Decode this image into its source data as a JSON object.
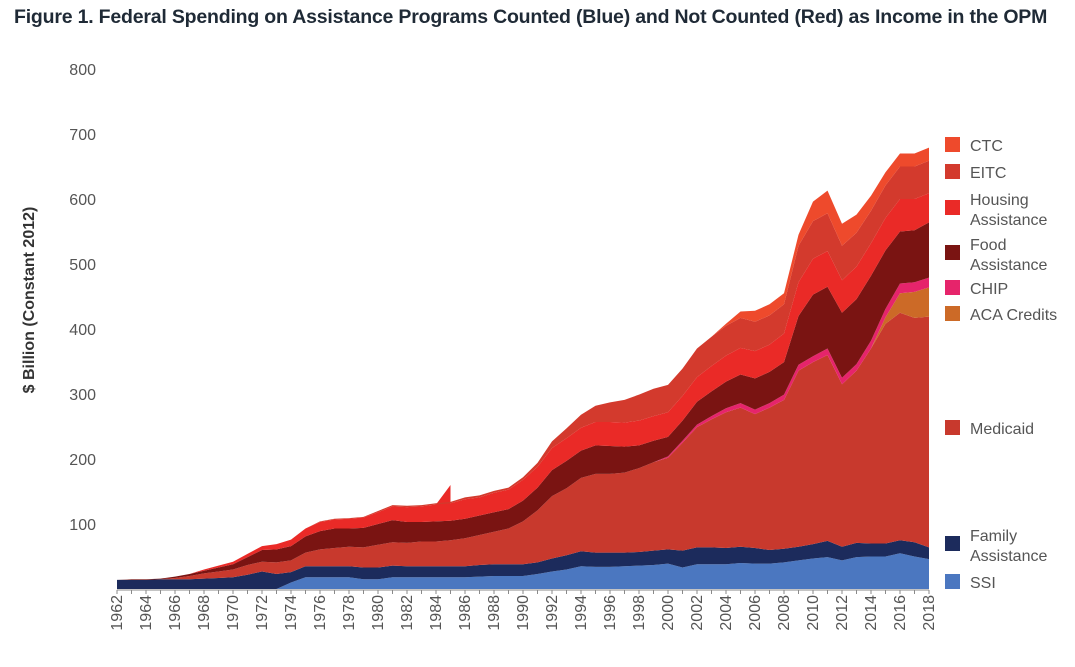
{
  "chart_data": {
    "type": "area",
    "title": "Figure 1. Federal Spending on Assistance Programs Counted (Blue) and Not Counted (Red) as Income in the OPM",
    "ylabel": "$ Billion (Constant 2012)",
    "xlabel": "",
    "ylim": [
      0,
      800
    ],
    "y_ticks": [
      100,
      200,
      300,
      400,
      500,
      600,
      700,
      800
    ],
    "x_ticks": [
      1962,
      1964,
      1966,
      1968,
      1970,
      1972,
      1974,
      1976,
      1978,
      1980,
      1982,
      1984,
      1986,
      1988,
      1990,
      1992,
      1994,
      1996,
      1998,
      2000,
      2002,
      2004,
      2006,
      2008,
      2010,
      2012,
      2014,
      2016,
      2018
    ],
    "stacked": true,
    "legend_position": "right",
    "x": [
      1962,
      1963,
      1964,
      1965,
      1966,
      1967,
      1968,
      1969,
      1970,
      1971,
      1972,
      1973,
      1974,
      1975,
      1976,
      1977,
      1978,
      1979,
      1980,
      1981,
      1982,
      1983,
      1984,
      1985,
      1986,
      1987,
      1988,
      1989,
      1990,
      1991,
      1992,
      1993,
      1994,
      1995,
      1996,
      1997,
      1998,
      1999,
      2000,
      2001,
      2002,
      2003,
      2004,
      2005,
      2006,
      2007,
      2008,
      2009,
      2010,
      2011,
      2012,
      2013,
      2014,
      2015,
      2016,
      2017,
      2018
    ],
    "series": [
      {
        "name": "SSI",
        "color": "#4b77c0",
        "values": [
          0,
          0,
          0,
          0,
          0,
          0,
          0,
          0,
          0,
          0,
          0,
          0,
          10,
          18,
          18,
          18,
          18,
          15,
          15,
          18,
          18,
          18,
          18,
          18,
          18,
          19,
          20,
          20,
          20,
          23,
          27,
          30,
          35,
          34,
          34,
          35,
          36,
          37,
          39,
          33,
          38,
          38,
          38,
          40,
          39,
          39,
          41,
          44,
          47,
          49,
          44,
          49,
          50,
          50,
          55,
          50,
          46
        ]
      },
      {
        "name": "Family Assistance",
        "color": "#1c2b5c",
        "values": [
          14,
          14,
          14,
          15,
          15,
          15,
          16,
          17,
          18,
          22,
          27,
          23,
          16,
          17,
          17,
          17,
          17,
          18,
          18,
          18,
          17,
          17,
          17,
          17,
          17,
          18,
          18,
          18,
          18,
          18,
          20,
          22,
          23,
          22,
          22,
          21,
          21,
          22,
          22,
          26,
          26,
          26,
          25,
          25,
          24,
          21,
          21,
          21,
          22,
          25,
          21,
          22,
          20,
          20,
          20,
          22,
          18
        ]
      },
      {
        "name": "Medicaid",
        "color": "#c8392d",
        "values": [
          0,
          0,
          0,
          0,
          2,
          5,
          8,
          10,
          12,
          15,
          15,
          18,
          18,
          21,
          26,
          28,
          30,
          31,
          35,
          36,
          36,
          38,
          38,
          40,
          43,
          46,
          50,
          55,
          66,
          80,
          96,
          103,
          113,
          121,
          121,
          123,
          129,
          136,
          141,
          166,
          185,
          197,
          209,
          214,
          206,
          219,
          229,
          271,
          280,
          286,
          250,
          265,
          300,
          338,
          350,
          345,
          355
        ]
      },
      {
        "name": "ACA Credits",
        "color": "#cc6a27",
        "values": [
          0,
          0,
          0,
          0,
          0,
          0,
          0,
          0,
          0,
          0,
          0,
          0,
          0,
          0,
          0,
          0,
          0,
          0,
          0,
          0,
          0,
          0,
          0,
          0,
          0,
          0,
          0,
          0,
          0,
          0,
          0,
          0,
          0,
          0,
          0,
          0,
          0,
          0,
          0,
          0,
          0,
          0,
          0,
          0,
          0,
          0,
          0,
          0,
          0,
          0,
          0,
          0,
          0,
          10,
          30,
          40,
          45
        ]
      },
      {
        "name": "CHIP",
        "color": "#e6246b",
        "values": [
          0,
          0,
          0,
          0,
          0,
          0,
          0,
          0,
          0,
          0,
          0,
          0,
          0,
          0,
          0,
          0,
          0,
          0,
          0,
          0,
          0,
          0,
          0,
          0,
          0,
          0,
          0,
          0,
          0,
          0,
          0,
          0,
          0,
          0,
          0,
          0,
          0,
          0,
          2,
          3,
          4,
          5,
          6,
          7,
          7,
          7,
          8,
          9,
          9,
          10,
          10,
          10,
          12,
          13,
          15,
          15,
          15
        ]
      },
      {
        "name": "Food Assistance",
        "color": "#7a1412",
        "values": [
          0,
          1,
          1,
          1,
          2,
          3,
          4,
          6,
          8,
          12,
          18,
          20,
          22,
          25,
          28,
          30,
          28,
          30,
          32,
          34,
          32,
          30,
          31,
          30,
          30,
          30,
          30,
          30,
          32,
          35,
          40,
          42,
          42,
          44,
          43,
          40,
          35,
          33,
          30,
          31,
          35,
          38,
          41,
          44,
          48,
          48,
          50,
          75,
          95,
          95,
          100,
          100,
          100,
          90,
          80,
          80,
          85
        ]
      },
      {
        "name": "Housing Assistance",
        "color": "#ea2a27",
        "values": [
          0,
          0,
          0,
          0,
          0,
          0,
          2,
          3,
          4,
          5,
          6,
          8,
          10,
          12,
          14,
          14,
          15,
          16,
          18,
          21,
          23,
          24,
          26,
          27,
          30,
          28,
          30,
          30,
          32,
          32,
          34,
          35,
          35,
          36,
          37,
          37,
          38,
          38,
          38,
          38,
          38,
          39,
          40,
          41,
          42,
          42,
          44,
          52,
          55,
          55,
          50,
          50,
          50,
          50,
          50,
          48,
          45
        ]
      },
      {
        "name": "EITC",
        "color": "#d33a2d",
        "values": [
          0,
          0,
          0,
          0,
          0,
          0,
          0,
          0,
          0,
          0,
          0,
          0,
          0,
          0,
          1,
          1,
          1,
          1,
          2,
          2,
          2,
          2,
          2,
          2,
          3,
          3,
          3,
          3,
          4,
          6,
          10,
          15,
          20,
          25,
          30,
          35,
          40,
          42,
          42,
          42,
          44,
          45,
          46,
          46,
          45,
          45,
          45,
          56,
          58,
          58,
          53,
          52,
          50,
          50,
          50,
          50,
          50
        ]
      },
      {
        "name": "CTC",
        "color": "#ee4a2c",
        "values": [
          0,
          0,
          0,
          0,
          0,
          0,
          0,
          0,
          0,
          0,
          0,
          0,
          0,
          0,
          0,
          0,
          0,
          0,
          0,
          0,
          0,
          0,
          0,
          0,
          0,
          0,
          0,
          0,
          0,
          0,
          0,
          0,
          0,
          0,
          0,
          0,
          0,
          0,
          0,
          0,
          0,
          0,
          3,
          10,
          17,
          17,
          17,
          17,
          30,
          35,
          34,
          28,
          23,
          20,
          20,
          20,
          20
        ]
      }
    ],
    "spike": {
      "x": 1985,
      "y": 160
    }
  }
}
